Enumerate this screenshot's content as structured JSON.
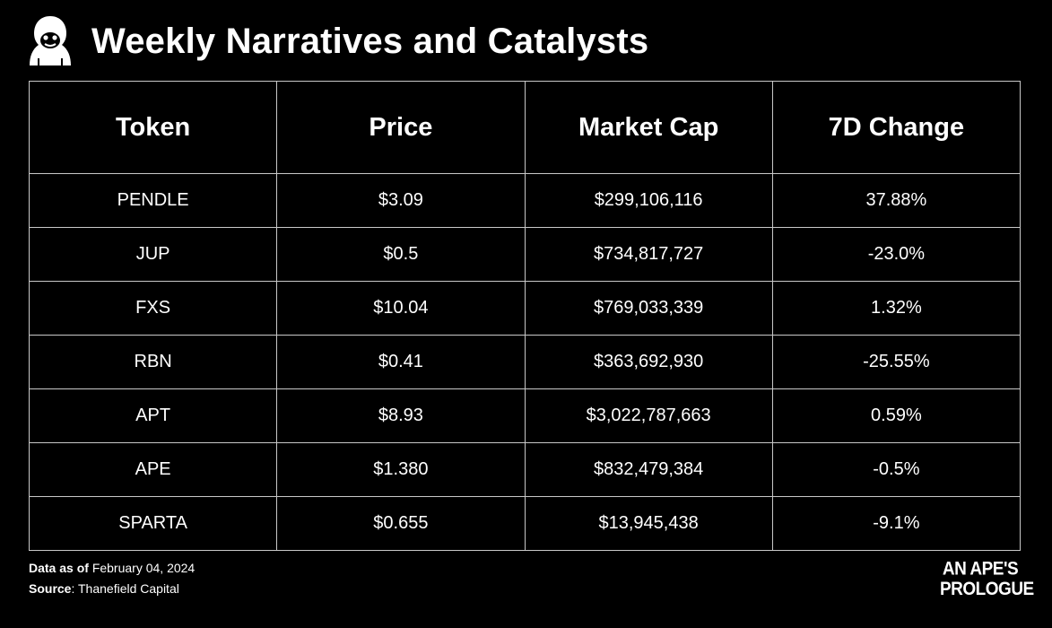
{
  "header": {
    "icon": "ape-icon",
    "title": "Weekly Narratives and Catalysts"
  },
  "table": {
    "columns": [
      "Token",
      "Price",
      "Market Cap",
      "7D Change"
    ],
    "rows": [
      [
        "PENDLE",
        "$3.09",
        "$299,106,116",
        "37.88%"
      ],
      [
        "JUP",
        "$0.5",
        "$734,817,727",
        "-23.0%"
      ],
      [
        "FXS",
        "$10.04",
        "$769,033,339",
        "1.32%"
      ],
      [
        "RBN",
        "$0.41",
        "$363,692,930",
        "-25.55%"
      ],
      [
        "APT",
        "$8.93",
        "$3,022,787,663",
        "0.59%"
      ],
      [
        "APE",
        "$1.380",
        "$832,479,384",
        "-0.5%"
      ],
      [
        "SPARTA",
        "$0.655",
        "$13,945,438",
        "-9.1%"
      ]
    ]
  },
  "footer": {
    "date_label": "Data as of",
    "date_value": "February  04, 2024",
    "source_label": "Source",
    "source_value": ": Thanefield Capital"
  },
  "brand": {
    "line1": "AN APE'S",
    "line2": "PROLOGUE"
  },
  "colors": {
    "background": "#000000",
    "text": "#ffffff",
    "grid": "#c8c8c8"
  }
}
